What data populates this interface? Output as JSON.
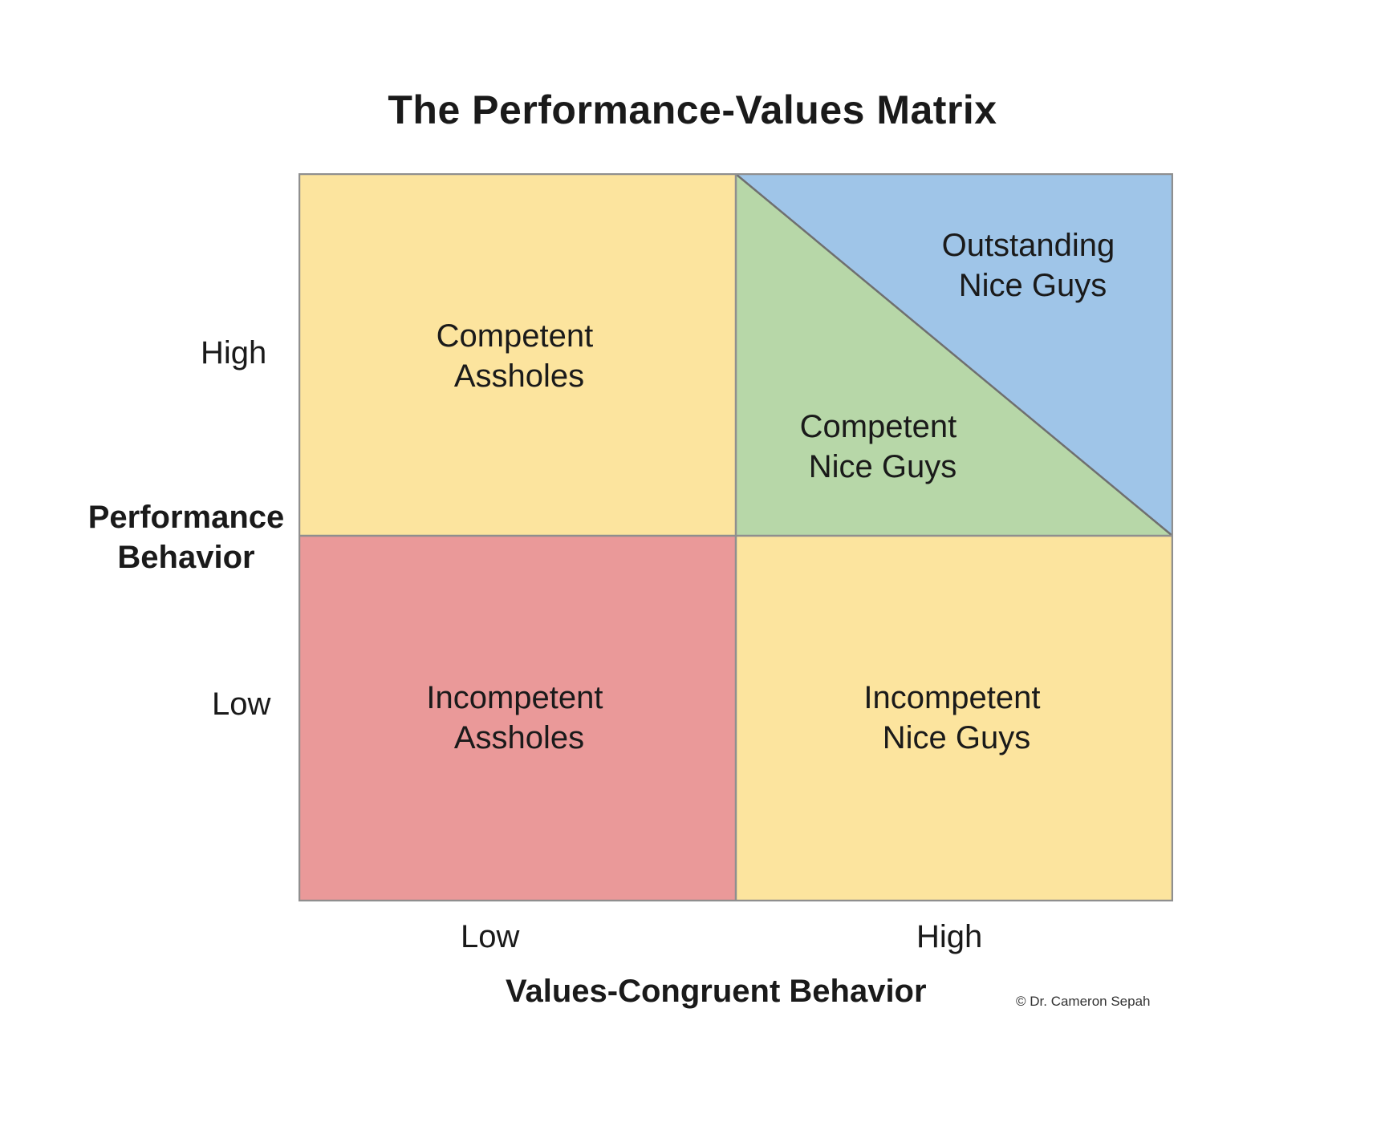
{
  "title": "The Performance-Values Matrix",
  "y_axis": {
    "title_line1": "Performance",
    "title_line2": "Behavior",
    "ticks": [
      "High",
      "Low"
    ]
  },
  "x_axis": {
    "title": "Values-Congruent Behavior",
    "ticks": [
      "Low",
      "High"
    ]
  },
  "quadrants": {
    "top_left": {
      "line1": "Competent",
      "line2": "Assholes",
      "color": "#fce49e"
    },
    "top_right_lower": {
      "line1": "Competent",
      "line2": "Nice Guys",
      "color": "#b7d7a8"
    },
    "top_right_upper": {
      "line1": "Outstanding",
      "line2": "Nice Guys",
      "color": "#9fc5e8"
    },
    "bottom_left": {
      "line1": "Incompetent",
      "line2": "Assholes",
      "color": "#ea9999"
    },
    "bottom_right": {
      "line1": "Incompetent",
      "line2": "Nice Guys",
      "color": "#fce49e"
    }
  },
  "credit": "© Dr. Cameron Sepah",
  "colors": {
    "border": "#8f8f8f",
    "text": "#1a1a1a"
  }
}
